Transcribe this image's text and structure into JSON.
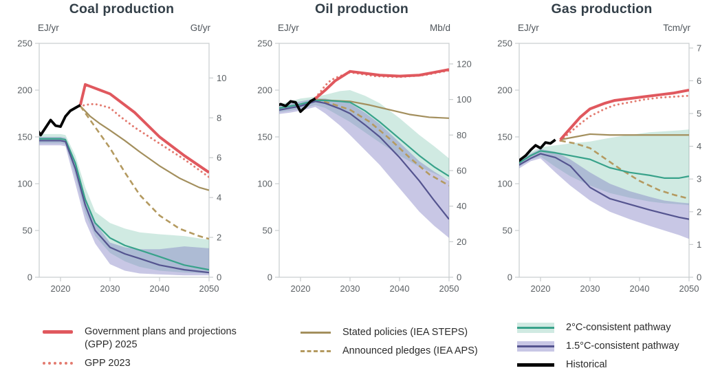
{
  "colors": {
    "gpp2025": "#e0585e",
    "gpp2023": "#e37b70",
    "steps": "#a38f5d",
    "aps": "#b49a60",
    "two_c_line": "#38a28a",
    "two_c_band": "#62bb9e",
    "one_five_c_line": "#54548f",
    "one_five_c_band": "#7d79c0",
    "historical": "#000000",
    "spine": "#c9cdce",
    "tick_text": "#5b6064",
    "title_text": "#333f48"
  },
  "chart_data": [
    {
      "type": "line",
      "title": "Coal production",
      "x_axis": {
        "range": [
          2015,
          2050
        ],
        "ticks": [
          2020,
          2030,
          2040,
          2050
        ]
      },
      "left_axis": {
        "label": "EJ/yr",
        "range": [
          0,
          250
        ],
        "ticks": [
          0,
          50,
          100,
          150,
          200,
          250
        ]
      },
      "right_axis": {
        "label": "Gt/yr",
        "ticks": [
          0,
          2,
          4,
          6,
          8,
          10
        ],
        "ej_per_unit": 21.3
      },
      "bands": [
        {
          "name": "2C-consistent range",
          "style": "two_c",
          "x": [
            2015,
            2018,
            2020,
            2021,
            2023,
            2025,
            2027,
            2030,
            2033,
            2036,
            2040,
            2045,
            2050
          ],
          "upper": [
            153,
            153,
            153,
            152,
            130,
            96,
            70,
            58,
            52,
            48,
            46,
            44,
            40
          ],
          "lower": [
            143,
            143,
            143,
            142,
            108,
            68,
            44,
            26,
            17,
            11,
            7,
            5,
            4
          ]
        },
        {
          "name": "1.5C-consistent range",
          "style": "one_five_c",
          "x": [
            2015,
            2018,
            2020,
            2021,
            2023,
            2025,
            2027,
            2030,
            2033,
            2036,
            2040,
            2045,
            2050
          ],
          "upper": [
            150,
            150,
            150,
            149,
            122,
            86,
            58,
            37,
            32,
            30,
            30,
            33,
            31
          ],
          "lower": [
            141,
            141,
            141,
            140,
            100,
            60,
            36,
            14,
            7,
            4,
            3,
            2,
            2
          ]
        }
      ],
      "series": [
        {
          "name": "GPP 2023",
          "style": "gpp2023",
          "x": [
            2023,
            2024,
            2025,
            2026,
            2027,
            2028,
            2030,
            2032,
            2035,
            2040,
            2045,
            2050
          ],
          "y": [
            181,
            183,
            184,
            185,
            185,
            184,
            181,
            172,
            160,
            143,
            126,
            107
          ]
        },
        {
          "name": "Stated policies (IEA STEPS)",
          "style": "steps",
          "x": [
            2024,
            2026,
            2028,
            2030,
            2033,
            2036,
            2040,
            2044,
            2048,
            2050
          ],
          "y": [
            183,
            172,
            164,
            157,
            146,
            134,
            119,
            106,
            96,
            93
          ]
        },
        {
          "name": "Announced pledges (IEA APS)",
          "style": "aps",
          "x": [
            2024,
            2026,
            2028,
            2030,
            2033,
            2036,
            2040,
            2044,
            2048,
            2050
          ],
          "y": [
            183,
            168,
            153,
            138,
            112,
            88,
            66,
            52,
            44,
            41
          ]
        },
        {
          "name": "Government plans and projections (GPP) 2025",
          "style": "gpp2025",
          "x": [
            2024,
            2025,
            2026,
            2028,
            2030,
            2033,
            2035,
            2040,
            2045,
            2050
          ],
          "y": [
            184,
            206,
            204,
            200,
            196,
            184,
            176,
            150,
            130,
            112
          ]
        },
        {
          "name": "2°C-consistent pathway",
          "style": "two_c",
          "x": [
            2015,
            2018,
            2020,
            2021,
            2023,
            2025,
            2027,
            2030,
            2033,
            2036,
            2040,
            2045,
            2050
          ],
          "y": [
            148,
            148,
            148,
            147,
            122,
            83,
            58,
            42,
            34,
            29,
            22,
            13,
            8
          ]
        },
        {
          "name": "1.5°C-consistent pathway",
          "style": "one_five_c",
          "x": [
            2015,
            2018,
            2020,
            2021,
            2023,
            2025,
            2027,
            2030,
            2033,
            2036,
            2040,
            2045,
            2050
          ],
          "y": [
            146,
            146,
            146,
            145,
            116,
            77,
            50,
            32,
            25,
            20,
            13,
            8,
            5
          ]
        },
        {
          "name": "Historical",
          "style": "historical",
          "x": [
            2015,
            2016,
            2017,
            2018,
            2019,
            2020,
            2021,
            2022,
            2023,
            2024
          ],
          "y": [
            160,
            152,
            160,
            168,
            162,
            161,
            172,
            178,
            181,
            184
          ]
        }
      ]
    },
    {
      "type": "line",
      "title": "Oil production",
      "x_axis": {
        "range": [
          2015,
          2050
        ],
        "ticks": [
          2020,
          2030,
          2040,
          2050
        ]
      },
      "left_axis": {
        "label": "EJ/yr",
        "range": [
          0,
          250
        ],
        "ticks": [
          0,
          50,
          100,
          150,
          200,
          250
        ]
      },
      "right_axis": {
        "label": "Mb/d",
        "ticks": [
          0,
          20,
          40,
          60,
          80,
          100,
          120
        ],
        "ej_per_unit": 1.9
      },
      "bands": [
        {
          "name": "2C-consistent range",
          "style": "two_c",
          "x": [
            2015,
            2018,
            2020,
            2023,
            2025,
            2028,
            2030,
            2033,
            2036,
            2040,
            2044,
            2047,
            2050
          ],
          "upper": [
            184,
            188,
            191,
            193,
            195,
            199,
            200,
            194,
            186,
            170,
            152,
            140,
            127
          ],
          "lower": [
            176,
            178,
            180,
            184,
            181,
            172,
            166,
            155,
            144,
            130,
            118,
            111,
            104
          ]
        },
        {
          "name": "1.5C-consistent range",
          "style": "one_five_c",
          "x": [
            2015,
            2018,
            2020,
            2023,
            2025,
            2028,
            2030,
            2033,
            2036,
            2040,
            2044,
            2047,
            2050
          ],
          "upper": [
            182,
            186,
            188,
            191,
            191,
            188,
            186,
            176,
            164,
            144,
            124,
            113,
            103
          ],
          "lower": [
            174,
            176,
            178,
            182,
            175,
            162,
            152,
            136,
            120,
            95,
            70,
            55,
            42
          ]
        }
      ],
      "series": [
        {
          "name": "GPP 2023",
          "style": "gpp2023",
          "x": [
            2023,
            2024,
            2025,
            2026,
            2027,
            2028,
            2030,
            2035,
            2040,
            2045,
            2050
          ],
          "y": [
            192,
            198,
            205,
            210,
            213,
            215,
            219,
            215,
            214,
            216,
            221
          ]
        },
        {
          "name": "Stated policies (IEA STEPS)",
          "style": "steps",
          "x": [
            2023,
            2026,
            2030,
            2034,
            2038,
            2042,
            2046,
            2050
          ],
          "y": [
            190,
            189,
            188,
            184,
            179,
            174,
            171,
            170
          ]
        },
        {
          "name": "Announced pledges (IEA APS)",
          "style": "aps",
          "x": [
            2023,
            2026,
            2030,
            2034,
            2038,
            2042,
            2046,
            2050
          ],
          "y": [
            190,
            186,
            179,
            166,
            148,
            128,
            110,
            98
          ]
        },
        {
          "name": "Government plans and projections (GPP) 2025",
          "style": "gpp2025",
          "x": [
            2023,
            2025,
            2027,
            2030,
            2033,
            2036,
            2040,
            2044,
            2047,
            2050
          ],
          "y": [
            191,
            200,
            210,
            220,
            218,
            216,
            215,
            216,
            219,
            222
          ]
        },
        {
          "name": "2°C-consistent pathway",
          "style": "two_c",
          "x": [
            2015,
            2018,
            2020,
            2023,
            2025,
            2028,
            2030,
            2033,
            2036,
            2040,
            2044,
            2047,
            2050
          ],
          "y": [
            180,
            183,
            185,
            189,
            189,
            188,
            187,
            178,
            166,
            148,
            130,
            118,
            108
          ]
        },
        {
          "name": "1.5°C-consistent pathway",
          "style": "one_five_c",
          "x": [
            2015,
            2018,
            2020,
            2023,
            2025,
            2028,
            2030,
            2033,
            2036,
            2040,
            2044,
            2047,
            2050
          ],
          "y": [
            178,
            181,
            183,
            188,
            186,
            180,
            175,
            163,
            150,
            128,
            103,
            82,
            62
          ]
        },
        {
          "name": "Historical",
          "style": "historical",
          "x": [
            2015,
            2016,
            2017,
            2018,
            2019,
            2020,
            2021,
            2022,
            2023
          ],
          "y": [
            183,
            185,
            183,
            188,
            187,
            177,
            182,
            188,
            191
          ]
        }
      ]
    },
    {
      "type": "line",
      "title": "Gas production",
      "x_axis": {
        "range": [
          2015,
          2050
        ],
        "ticks": [
          2020,
          2030,
          2040,
          2050
        ]
      },
      "left_axis": {
        "label": "EJ/yr",
        "range": [
          0,
          250
        ],
        "ticks": [
          0,
          50,
          100,
          150,
          200,
          250
        ]
      },
      "right_axis": {
        "label": "Tcm/yr",
        "ticks": [
          0,
          1,
          2,
          3,
          4,
          5,
          6,
          7
        ],
        "ej_per_unit": 35
      },
      "bands": [
        {
          "name": "2C-consistent range",
          "style": "two_c",
          "x": [
            2015,
            2018,
            2020,
            2023,
            2026,
            2030,
            2034,
            2038,
            2042,
            2045,
            2048,
            2050
          ],
          "upper": [
            124,
            134,
            139,
            141,
            143,
            145,
            149,
            152,
            155,
            156,
            157,
            158
          ],
          "lower": [
            116,
            126,
            129,
            118,
            108,
            98,
            90,
            85,
            81,
            79,
            78,
            77
          ]
        },
        {
          "name": "1.5C-consistent range",
          "style": "one_five_c",
          "x": [
            2015,
            2018,
            2020,
            2023,
            2026,
            2030,
            2034,
            2038,
            2042,
            2045,
            2048,
            2050
          ],
          "upper": [
            122,
            132,
            137,
            134,
            126,
            112,
            100,
            92,
            86,
            82,
            80,
            79
          ],
          "lower": [
            114,
            124,
            127,
            112,
            98,
            82,
            70,
            62,
            55,
            50,
            45,
            41
          ]
        }
      ],
      "series": [
        {
          "name": "GPP 2023",
          "style": "gpp2023",
          "x": [
            2024,
            2026,
            2028,
            2030,
            2033,
            2035,
            2038,
            2041,
            2044,
            2047,
            2050
          ],
          "y": [
            146,
            155,
            164,
            172,
            180,
            184,
            187,
            190,
            192,
            193,
            194
          ]
        },
        {
          "name": "Stated policies (IEA STEPS)",
          "style": "steps",
          "x": [
            2024,
            2027,
            2030,
            2034,
            2038,
            2042,
            2046,
            2050
          ],
          "y": [
            147,
            150,
            153,
            152,
            152,
            152,
            152,
            152
          ]
        },
        {
          "name": "Announced pledges (IEA APS)",
          "style": "aps",
          "x": [
            2024,
            2027,
            2030,
            2033,
            2036,
            2040,
            2044,
            2047,
            2050
          ],
          "y": [
            146,
            143,
            138,
            127,
            116,
            103,
            93,
            88,
            84
          ]
        },
        {
          "name": "Government plans and projections (GPP) 2025",
          "style": "gpp2025",
          "x": [
            2024,
            2026,
            2028,
            2030,
            2033,
            2035,
            2038,
            2041,
            2044,
            2047,
            2050
          ],
          "y": [
            147,
            159,
            171,
            180,
            186,
            189,
            191,
            193,
            195,
            197,
            200
          ]
        },
        {
          "name": "2°C-consistent pathway",
          "style": "two_c",
          "x": [
            2015,
            2018,
            2020,
            2023,
            2026,
            2030,
            2034,
            2038,
            2042,
            2045,
            2048,
            2050
          ],
          "y": [
            120,
            130,
            135,
            133,
            130,
            126,
            117,
            112,
            109,
            106,
            106,
            108
          ]
        },
        {
          "name": "1.5°C-consistent pathway",
          "style": "one_five_c",
          "x": [
            2015,
            2018,
            2020,
            2023,
            2026,
            2030,
            2034,
            2038,
            2042,
            2045,
            2048,
            2050
          ],
          "y": [
            118,
            127,
            132,
            128,
            119,
            96,
            84,
            78,
            72,
            68,
            64,
            62
          ]
        },
        {
          "name": "Historical",
          "style": "historical",
          "x": [
            2015,
            2016,
            2017,
            2018,
            2019,
            2020,
            2021,
            2022,
            2023
          ],
          "y": [
            122,
            126,
            130,
            136,
            141,
            138,
            144,
            143,
            147
          ]
        }
      ]
    }
  ],
  "legend": {
    "groups": [
      {
        "items": [
          {
            "swatch": "gpp2025",
            "label": "Government plans and  projections\n(GPP) 2025"
          },
          {
            "swatch": "gpp2023",
            "label": "GPP 2023"
          }
        ]
      },
      {
        "items": [
          {
            "swatch": "steps",
            "label": "Stated policies (IEA STEPS)"
          },
          {
            "swatch": "aps",
            "label": "Announced pledges (IEA APS)"
          }
        ]
      },
      {
        "items": [
          {
            "swatch": "band_two_c",
            "label": "2°C-consistent pathway"
          },
          {
            "swatch": "band_one_five_c",
            "label": "1.5°C-consistent pathway"
          },
          {
            "swatch": "historical",
            "label": "Historical"
          }
        ]
      }
    ]
  }
}
